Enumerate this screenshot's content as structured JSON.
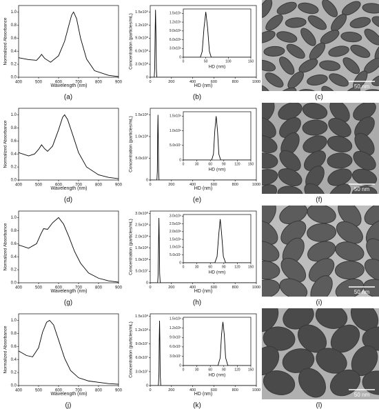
{
  "chart_data": [
    {
      "type": "line",
      "panel_label": "(a)",
      "xlabel": "Wavelength (nm)",
      "ylabel": "Normalized Absorbance",
      "color": "#000",
      "x": [
        400,
        450,
        490,
        505,
        515,
        530,
        560,
        600,
        630,
        650,
        665,
        675,
        690,
        710,
        740,
        780,
        850,
        900
      ],
      "values": [
        0.3,
        0.27,
        0.26,
        0.31,
        0.35,
        0.29,
        0.23,
        0.33,
        0.55,
        0.78,
        0.95,
        1.0,
        0.9,
        0.6,
        0.28,
        0.1,
        0.03,
        0.01
      ],
      "xlim": [
        400,
        900
      ],
      "xticks": [
        400,
        500,
        600,
        700,
        800,
        900
      ],
      "ylim": [
        0,
        1.1
      ],
      "yticks": [
        {
          "value": 0,
          "label": "0.0"
        },
        0.2,
        0.4,
        0.6,
        0.8,
        {
          "value": 1,
          "label": "1.0"
        }
      ]
    },
    {
      "type": "line",
      "panel_label": "(b)",
      "xlabel": "HD (nm)",
      "ylabel": "Concentration (particles/mL)",
      "color": "#000",
      "x": [
        0,
        38,
        42,
        46,
        50,
        54,
        58,
        62,
        1000
      ],
      "values": [
        0,
        0,
        200000000,
        1000000000,
        1550000000,
        1000000000,
        200000000,
        0,
        0
      ],
      "xlim": [
        0,
        1000
      ],
      "xticks": [
        0,
        200,
        400,
        600,
        800,
        1000
      ],
      "ylim": [
        0,
        1650000000
      ],
      "yticks": [
        0,
        {
          "value": 300000000,
          "label": "3.0x10⁸"
        },
        {
          "value": 600000000,
          "label": "6.0x10⁸"
        },
        {
          "value": 900000000,
          "label": "9.0x10⁸"
        },
        {
          "value": 1200000000,
          "label": "1.2x10⁹"
        },
        {
          "value": 1500000000,
          "label": "1.5x10⁹"
        }
      ],
      "inset": {
        "xlabel": "HD (nm)",
        "xlim": [
          0,
          150
        ],
        "xticks": [
          0,
          50,
          100,
          150
        ],
        "ylim": [
          0,
          1650000000
        ],
        "yticks": [
          0,
          {
            "value": 300000000,
            "label": "3.0x10⁸"
          },
          {
            "value": 600000000,
            "label": "6.0x10⁸"
          },
          {
            "value": 900000000,
            "label": "9.0x10⁸"
          },
          {
            "value": 1200000000,
            "label": "1.2x10⁹"
          },
          {
            "value": 1500000000,
            "label": "1.5x10⁹"
          }
        ]
      }
    },
    {
      "type": "line",
      "panel_label": "(d)",
      "xlabel": "Wavelength (nm)",
      "ylabel": "Normalized Absorbance",
      "color": "#000",
      "x": [
        400,
        450,
        480,
        500,
        515,
        530,
        545,
        570,
        600,
        620,
        630,
        645,
        670,
        700,
        740,
        800,
        850,
        900
      ],
      "values": [
        0.42,
        0.37,
        0.4,
        0.47,
        0.54,
        0.48,
        0.44,
        0.52,
        0.77,
        0.96,
        1.0,
        0.93,
        0.7,
        0.42,
        0.2,
        0.08,
        0.04,
        0.02
      ],
      "xlim": [
        400,
        900
      ],
      "xticks": [
        400,
        500,
        600,
        700,
        800,
        900
      ],
      "ylim": [
        0,
        1.1
      ],
      "yticks": [
        {
          "value": 0,
          "label": "0.0"
        },
        0.2,
        0.4,
        0.6,
        0.8,
        {
          "value": 1,
          "label": "1.0"
        }
      ]
    },
    {
      "type": "line",
      "panel_label": "(e)",
      "xlabel": "HD (nm)",
      "ylabel": "Concentration (particles/mL)",
      "color": "#000",
      "x": [
        0,
        63,
        67,
        70,
        73,
        76,
        79,
        83,
        1000
      ],
      "values": [
        0,
        0,
        20000000,
        100000000,
        150000000,
        100000000,
        20000000,
        0,
        0
      ],
      "xlim": [
        0,
        1000
      ],
      "xticks": [
        0,
        200,
        400,
        600,
        800,
        1000
      ],
      "ylim": [
        0,
        165000000
      ],
      "yticks": [
        0,
        {
          "value": 50000000,
          "label": "5.0x10⁷"
        },
        {
          "value": 100000000,
          "label": "1.0x10⁸"
        },
        {
          "value": 150000000,
          "label": "1.5x10⁸"
        }
      ],
      "inset": {
        "xlabel": "HD (nm)",
        "xlim": [
          0,
          150
        ],
        "xticks": [
          0,
          30,
          60,
          90,
          120,
          150
        ],
        "ylim": [
          0,
          165000000
        ],
        "yticks": [
          0,
          {
            "value": 50000000,
            "label": "5.0x10⁷"
          },
          {
            "value": 100000000,
            "label": "1.0x10⁸"
          },
          {
            "value": 150000000,
            "label": "1.5x10⁸"
          }
        ]
      }
    },
    {
      "type": "line",
      "panel_label": "(g)",
      "xlabel": "Wavelength (nm)",
      "ylabel": "Normalized Absorbance",
      "color": "#000",
      "x": [
        400,
        450,
        490,
        510,
        525,
        545,
        570,
        600,
        625,
        650,
        680,
        710,
        750,
        800,
        850,
        900
      ],
      "values": [
        0.58,
        0.53,
        0.6,
        0.74,
        0.83,
        0.82,
        0.92,
        1.0,
        0.9,
        0.72,
        0.48,
        0.3,
        0.15,
        0.07,
        0.03,
        0.01
      ],
      "xlim": [
        400,
        900
      ],
      "xticks": [
        400,
        500,
        600,
        700,
        800,
        900
      ],
      "ylim": [
        0,
        1.1
      ],
      "yticks": [
        {
          "value": 0,
          "label": "0.0"
        },
        0.2,
        0.4,
        0.6,
        0.8,
        {
          "value": 1,
          "label": "1.0"
        }
      ]
    },
    {
      "type": "line",
      "panel_label": "(h)",
      "xlabel": "HD (nm)",
      "ylabel": "Concentration (particles/mL)",
      "color": "#000",
      "x": [
        0,
        70,
        75,
        79,
        82,
        85,
        89,
        94,
        1000
      ],
      "values": [
        0,
        0,
        40000000,
        190000000,
        280000000,
        190000000,
        40000000,
        0,
        0
      ],
      "xlim": [
        0,
        1000
      ],
      "xticks": [
        0,
        200,
        400,
        600,
        800,
        1000
      ],
      "ylim": [
        0,
        310000000
      ],
      "yticks": [
        0,
        {
          "value": 50000000,
          "label": "5.0x10⁷"
        },
        {
          "value": 100000000,
          "label": "1.0x10⁸"
        },
        {
          "value": 150000000,
          "label": "1.5x10⁸"
        },
        {
          "value": 200000000,
          "label": "2.0x10⁸"
        },
        {
          "value": 250000000,
          "label": "2.5x10⁸"
        },
        {
          "value": 300000000,
          "label": "3.0x10⁸"
        }
      ],
      "inset": {
        "xlabel": "HD (nm)",
        "xlim": [
          0,
          150
        ],
        "xticks": [
          0,
          30,
          60,
          90,
          120,
          150
        ],
        "ylim": [
          0,
          310000000
        ],
        "yticks": [
          0,
          {
            "value": 50000000,
            "label": "5.0x10⁷"
          },
          {
            "value": 100000000,
            "label": "1.0x10⁸"
          },
          {
            "value": 150000000,
            "label": "1.5x10⁸"
          },
          {
            "value": 200000000,
            "label": "2.0x10⁸"
          },
          {
            "value": 250000000,
            "label": "2.5x10⁸"
          },
          {
            "value": 300000000,
            "label": "3.0x10⁸"
          }
        ]
      }
    },
    {
      "type": "line",
      "panel_label": "(j)",
      "xlabel": "Wavelength (nm)",
      "ylabel": "Normalized Absorbance",
      "color": "#000",
      "x": [
        400,
        440,
        470,
        500,
        520,
        540,
        555,
        575,
        600,
        630,
        660,
        700,
        750,
        800,
        850,
        900
      ],
      "values": [
        0.53,
        0.46,
        0.44,
        0.58,
        0.82,
        0.97,
        1.0,
        0.93,
        0.7,
        0.42,
        0.23,
        0.12,
        0.07,
        0.05,
        0.03,
        0.02
      ],
      "xlim": [
        400,
        900
      ],
      "xticks": [
        400,
        500,
        600,
        700,
        800,
        900
      ],
      "ylim": [
        0,
        1.1
      ],
      "yticks": [
        {
          "value": 0,
          "label": "0.0"
        },
        0.2,
        0.4,
        0.6,
        0.8,
        {
          "value": 1,
          "label": "1.0"
        }
      ]
    },
    {
      "type": "line",
      "panel_label": "(k)",
      "xlabel": "HD (nm)",
      "ylabel": "Concentration (particles/mL)",
      "color": "#000",
      "x": [
        0,
        77,
        82,
        85,
        88,
        91,
        94,
        99,
        1000
      ],
      "values": [
        0,
        0,
        25000000,
        100000000,
        140000000,
        100000000,
        25000000,
        0,
        0
      ],
      "xlim": [
        0,
        1000
      ],
      "xticks": [
        0,
        200,
        400,
        600,
        800,
        1000
      ],
      "ylim": [
        0,
        155000000
      ],
      "yticks": [
        0,
        {
          "value": 30000000,
          "label": "3.0x10⁷"
        },
        {
          "value": 60000000,
          "label": "6.0x10⁷"
        },
        {
          "value": 90000000,
          "label": "9.0x10⁷"
        },
        {
          "value": 120000000,
          "label": "1.2x10⁸"
        },
        {
          "value": 150000000,
          "label": "1.5x10⁸"
        }
      ],
      "inset": {
        "xlabel": "HD (nm)",
        "xlim": [
          0,
          150
        ],
        "xticks": [
          0,
          30,
          60,
          90,
          120,
          150
        ],
        "ylim": [
          0,
          155000000
        ],
        "yticks": [
          0,
          {
            "value": 30000000,
            "label": "3.0x10⁷"
          },
          {
            "value": 60000000,
            "label": "6.0x10⁷"
          },
          {
            "value": 90000000,
            "label": "9.0x10⁷"
          },
          {
            "value": 120000000,
            "label": "1.2x10⁸"
          },
          {
            "value": 150000000,
            "label": "1.5x10⁸"
          }
        ]
      }
    }
  ],
  "images": [
    {
      "panel_label": "(c)",
      "scale_bar": "50 nm"
    },
    {
      "panel_label": "(f)",
      "scale_bar": "50 nm"
    },
    {
      "panel_label": "(i)",
      "scale_bar": "50 nm"
    },
    {
      "panel_label": "(l)",
      "scale_bar": "50 nm"
    }
  ]
}
